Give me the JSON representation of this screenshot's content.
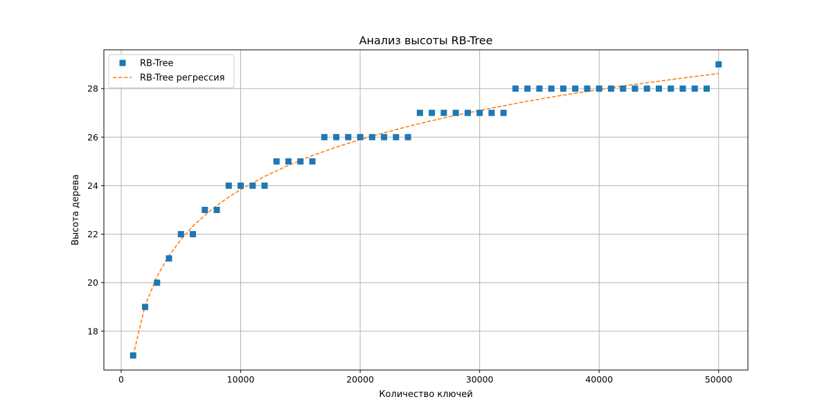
{
  "chart_data": {
    "type": "scatter",
    "title": "Анализ высоты RB-Tree",
    "xlabel": "Количество ключей",
    "ylabel": "Высота дерева",
    "xlim": [
      -1450,
      52450
    ],
    "ylim": [
      16.4,
      29.6
    ],
    "xticks": [
      0,
      10000,
      20000,
      30000,
      40000,
      50000
    ],
    "yticks": [
      18,
      20,
      22,
      24,
      26,
      28
    ],
    "grid": true,
    "legend_position": "upper-left",
    "series": [
      {
        "name": "RB-Tree",
        "kind": "points",
        "marker": "square",
        "color": "#1f77b4",
        "x": [
          1000,
          2000,
          3000,
          4000,
          5000,
          6000,
          7000,
          8000,
          9000,
          10000,
          11000,
          12000,
          13000,
          14000,
          15000,
          16000,
          17000,
          18000,
          19000,
          20000,
          21000,
          22000,
          23000,
          24000,
          25000,
          26000,
          27000,
          28000,
          29000,
          30000,
          31000,
          32000,
          33000,
          34000,
          35000,
          36000,
          37000,
          38000,
          39000,
          40000,
          41000,
          42000,
          43000,
          44000,
          45000,
          46000,
          47000,
          48000,
          49000,
          50000
        ],
        "y": [
          17,
          19,
          20,
          21,
          22,
          22,
          23,
          23,
          24,
          24,
          24,
          24,
          25,
          25,
          25,
          25,
          26,
          26,
          26,
          26,
          26,
          26,
          26,
          26,
          27,
          27,
          27,
          27,
          27,
          27,
          27,
          27,
          28,
          28,
          28,
          28,
          28,
          28,
          28,
          28,
          28,
          28,
          28,
          28,
          28,
          28,
          28,
          28,
          28,
          29
        ]
      },
      {
        "name": "RB-Tree регрессия",
        "kind": "dashed-line",
        "color": "#ff7f0e",
        "x": [
          1000,
          2000,
          3000,
          4000,
          5000,
          6000,
          7000,
          8000,
          9000,
          10000,
          12000,
          14000,
          16000,
          18000,
          20000,
          22000,
          24000,
          26000,
          28000,
          30000,
          32000,
          34000,
          36000,
          38000,
          40000,
          42000,
          44000,
          46000,
          48000,
          50000
        ],
        "y": [
          17.0,
          19.06,
          20.26,
          21.12,
          21.78,
          22.33,
          22.78,
          23.18,
          23.53,
          23.84,
          24.38,
          24.84,
          25.24,
          25.59,
          25.9,
          26.18,
          26.44,
          26.68,
          26.9,
          27.1,
          27.29,
          27.48,
          27.65,
          27.81,
          27.96,
          28.11,
          28.24,
          28.37,
          28.5,
          28.62
        ]
      }
    ]
  }
}
